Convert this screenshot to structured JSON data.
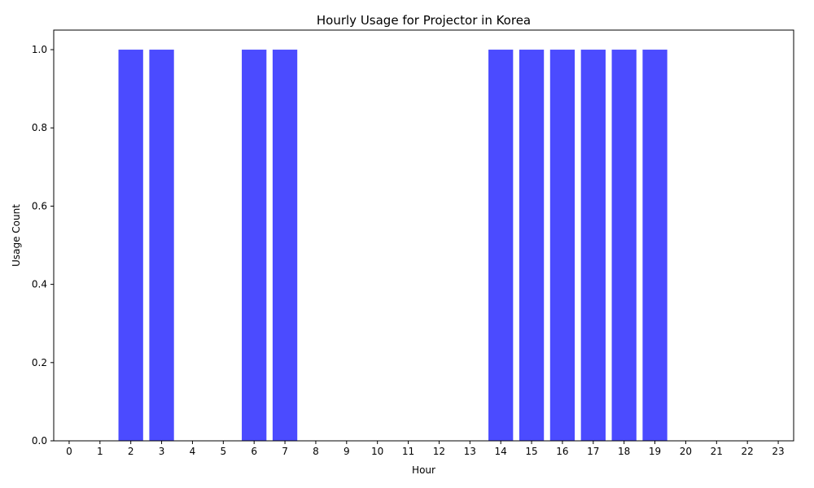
{
  "chart_data": {
    "type": "bar",
    "title": "Hourly Usage for Projector in Korea",
    "xlabel": "Hour",
    "ylabel": "Usage Count",
    "categories": [
      0,
      1,
      2,
      3,
      4,
      5,
      6,
      7,
      8,
      9,
      10,
      11,
      12,
      13,
      14,
      15,
      16,
      17,
      18,
      19,
      20,
      21,
      22,
      23
    ],
    "values": [
      0,
      0,
      1,
      1,
      0,
      0,
      1,
      1,
      0,
      0,
      0,
      0,
      0,
      0,
      1,
      1,
      1,
      1,
      1,
      1,
      0,
      0,
      0,
      0
    ],
    "ylim": [
      0,
      1.05
    ],
    "yticks": [
      "0.0",
      "0.2",
      "0.4",
      "0.6",
      "0.8",
      "1.0"
    ],
    "bar_color": "#4b4bff",
    "grid": false,
    "legend": "none"
  }
}
